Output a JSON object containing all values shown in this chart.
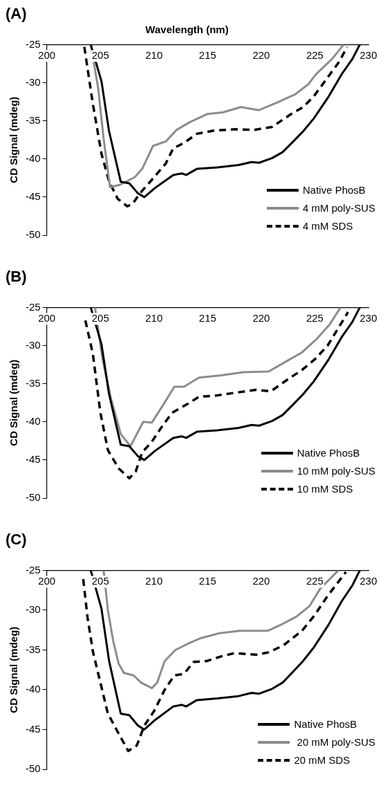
{
  "chart_data": [
    {
      "type": "line",
      "title": "(A)",
      "xlabel": "Wavelength (nm)",
      "ylabel": "CD Signal (mdeg)",
      "xlim": [
        200,
        230
      ],
      "xticks": [
        200,
        205,
        210,
        215,
        220,
        225,
        230
      ],
      "ylim": [
        -50,
        -25
      ],
      "yticks": [
        -50,
        -45,
        -40,
        -35,
        -30,
        -25
      ],
      "grid": false,
      "legend": "bottom right",
      "marker": "none",
      "series": [
        {
          "name": "Native PhosB",
          "color": "#000000",
          "line_style": "solid",
          "x": [
            204.1,
            205.1,
            205.8,
            206.9,
            207.7,
            208.5,
            209.1,
            210.1,
            211.8,
            212.6,
            213.0,
            214.0,
            215.9,
            217.9,
            219.1,
            219.8,
            221.0,
            222.0,
            223.0,
            223.9,
            224.9,
            226.3,
            227.5,
            228.5,
            229.2
          ],
          "values": [
            -25,
            -29.8,
            -36.3,
            -43.0,
            -43.2,
            -44.5,
            -45.0,
            -43.8,
            -42.1,
            -41.9,
            -42.1,
            -41.3,
            -41.1,
            -40.8,
            -40.4,
            -40.5,
            -39.9,
            -39.1,
            -37.7,
            -36.4,
            -34.7,
            -31.8,
            -28.9,
            -26.9,
            -25
          ]
        },
        {
          "name": "4 mM poly-SUS",
          "color": "#8c8c8c",
          "line_style": "solid",
          "x": [
            204.1,
            204.8,
            205.3,
            205.9,
            206.8,
            208.2,
            208.9,
            209.9,
            211.1,
            212.1,
            213.3,
            215.0,
            216.4,
            218.1,
            219.8,
            221.5,
            223.2,
            224.4,
            225.1,
            226.6,
            227.7
          ],
          "values": [
            -25,
            -30.8,
            -37.3,
            -43.7,
            -43.4,
            -42.4,
            -41.3,
            -38.3,
            -37.7,
            -36.2,
            -35.2,
            -34.1,
            -33.9,
            -33.2,
            -33.6,
            -32.6,
            -31.5,
            -30.2,
            -28.9,
            -26.9,
            -25
          ]
        },
        {
          "name": "4 mM SDS",
          "color": "#000000",
          "line_style": "dashed",
          "x": [
            203.5,
            204.3,
            205.1,
            205.8,
            206.6,
            207.5,
            208.0,
            208.7,
            209.7,
            211.1,
            211.8,
            212.8,
            214.0,
            215.5,
            217.6,
            219.3,
            221.0,
            222.7,
            223.9,
            224.9,
            226.1,
            227.3,
            228.0
          ],
          "values": [
            -25.3,
            -32.8,
            -39.3,
            -42.9,
            -45.2,
            -46.2,
            -45.9,
            -44.5,
            -42.9,
            -40.6,
            -38.6,
            -37.9,
            -36.7,
            -36.3,
            -36.1,
            -36.2,
            -35.8,
            -34.2,
            -33.2,
            -31.8,
            -29.5,
            -27.2,
            -25.3
          ]
        }
      ]
    },
    {
      "type": "line",
      "title": "(B)",
      "ylabel": "CD Signal (mdeg)",
      "xlim": [
        200,
        230
      ],
      "xticks": [
        200,
        205,
        210,
        215,
        220,
        225,
        230
      ],
      "ylim": [
        -50,
        -25
      ],
      "yticks": [
        -50,
        -45,
        -40,
        -35,
        -30,
        -25
      ],
      "grid": false,
      "legend": "bottom right",
      "marker": "none",
      "series": [
        {
          "name": "Native PhosB",
          "color": "#000000",
          "line_style": "solid",
          "x": [
            204.1,
            205.1,
            205.8,
            206.9,
            207.7,
            208.5,
            209.1,
            210.1,
            211.8,
            212.6,
            213.0,
            214.0,
            215.9,
            217.9,
            219.1,
            219.8,
            221.0,
            222.0,
            223.0,
            223.9,
            224.9,
            226.3,
            227.5,
            228.5,
            229.2
          ],
          "values": [
            -25,
            -29.8,
            -36.3,
            -43.0,
            -43.2,
            -44.5,
            -45.0,
            -43.8,
            -42.1,
            -41.9,
            -42.1,
            -41.3,
            -41.1,
            -40.8,
            -40.4,
            -40.5,
            -39.9,
            -39.1,
            -37.7,
            -36.4,
            -34.7,
            -31.8,
            -28.9,
            -26.9,
            -25
          ]
        },
        {
          "name": "10 mM poly-SUS",
          "color": "#8c8c8c",
          "line_style": "solid",
          "x": [
            204.5,
            205.2,
            206.0,
            206.9,
            207.8,
            208.4,
            209.0,
            209.8,
            210.8,
            211.9,
            212.8,
            214.2,
            216.3,
            218.3,
            220.7,
            222.3,
            223.8,
            225.2,
            226.4,
            227.4
          ],
          "values": [
            -25,
            -31.8,
            -37.0,
            -41.6,
            -43.2,
            -41.6,
            -40.0,
            -40.1,
            -37.9,
            -35.4,
            -35.4,
            -34.2,
            -33.9,
            -33.5,
            -33.4,
            -32.1,
            -30.9,
            -29.1,
            -27.2,
            -25
          ]
        },
        {
          "name": "10 mM SDS",
          "color": "#000000",
          "line_style": "dashed",
          "x": [
            203.6,
            204.3,
            205.0,
            205.7,
            206.7,
            207.7,
            208.3,
            208.9,
            209.8,
            210.8,
            211.7,
            213.2,
            214.2,
            215.6,
            217.5,
            219.5,
            220.9,
            222.3,
            223.8,
            225.0,
            226.2,
            228.1
          ],
          "values": [
            -26.7,
            -31.1,
            -38.8,
            -43.7,
            -46.1,
            -47.4,
            -46.5,
            -44.0,
            -42.6,
            -40.5,
            -38.8,
            -37.6,
            -36.7,
            -36.6,
            -36.2,
            -35.8,
            -36.0,
            -34.6,
            -33.2,
            -31.8,
            -30.0,
            -25.6
          ]
        }
      ]
    },
    {
      "type": "line",
      "title": "(C)",
      "ylabel": "CD Signal (mdeg)",
      "xlim": [
        200,
        230
      ],
      "xticks": [
        200,
        205,
        210,
        215,
        220,
        225,
        230
      ],
      "ylim": [
        -50,
        -25
      ],
      "yticks": [
        -50,
        -45,
        -40,
        -35,
        -30,
        -25
      ],
      "grid": false,
      "legend": "bottom right",
      "marker": "none",
      "series": [
        {
          "name": "Native PhosB",
          "color": "#000000",
          "line_style": "solid",
          "x": [
            204.1,
            205.1,
            205.8,
            206.9,
            207.7,
            208.5,
            209.1,
            210.1,
            211.8,
            212.6,
            213.0,
            214.0,
            215.9,
            217.9,
            219.1,
            219.8,
            221.0,
            222.0,
            223.0,
            223.9,
            224.9,
            226.3,
            227.5,
            228.5,
            229.2
          ],
          "values": [
            -25,
            -29.8,
            -36.3,
            -43.0,
            -43.2,
            -44.5,
            -45.0,
            -43.8,
            -42.1,
            -41.9,
            -42.1,
            -41.3,
            -41.1,
            -40.8,
            -40.4,
            -40.5,
            -39.9,
            -39.1,
            -37.7,
            -36.4,
            -34.7,
            -31.8,
            -28.9,
            -26.9,
            -25
          ]
        },
        {
          "name": " 20 mM poly-SUS",
          "color": "#8c8c8c",
          "line_style": "solid",
          "x": [
            205.3,
            205.7,
            206.2,
            206.7,
            207.2,
            208.1,
            208.8,
            209.8,
            210.3,
            211.0,
            212.0,
            213.2,
            214.4,
            216.1,
            218.0,
            220.6,
            221.9,
            223.3,
            224.5,
            225.5,
            227.2
          ],
          "values": [
            -25,
            -30.0,
            -33.9,
            -36.7,
            -37.9,
            -38.2,
            -39.1,
            -39.8,
            -39.1,
            -36.4,
            -35.0,
            -34.2,
            -33.5,
            -32.9,
            -32.6,
            -32.6,
            -31.8,
            -30.8,
            -29.5,
            -27.3,
            -25
          ]
        },
        {
          "name": "20 mM SDS",
          "color": "#000000",
          "line_style": "dashed",
          "x": [
            203.4,
            203.8,
            204.3,
            205.0,
            205.7,
            206.7,
            207.6,
            208.4,
            209.1,
            210.0,
            211.0,
            211.9,
            212.8,
            213.7,
            214.9,
            216.3,
            217.5,
            219.5,
            220.7,
            222.1,
            223.8,
            225.0,
            226.2,
            227.9
          ],
          "values": [
            -26.1,
            -30.9,
            -35.2,
            -39.1,
            -43.0,
            -45.5,
            -47.7,
            -47.0,
            -44.5,
            -42.7,
            -40.0,
            -38.2,
            -38.0,
            -36.5,
            -36.4,
            -35.8,
            -35.4,
            -35.6,
            -35.3,
            -34.4,
            -32.6,
            -30.6,
            -28.2,
            -25.2
          ]
        }
      ]
    }
  ]
}
